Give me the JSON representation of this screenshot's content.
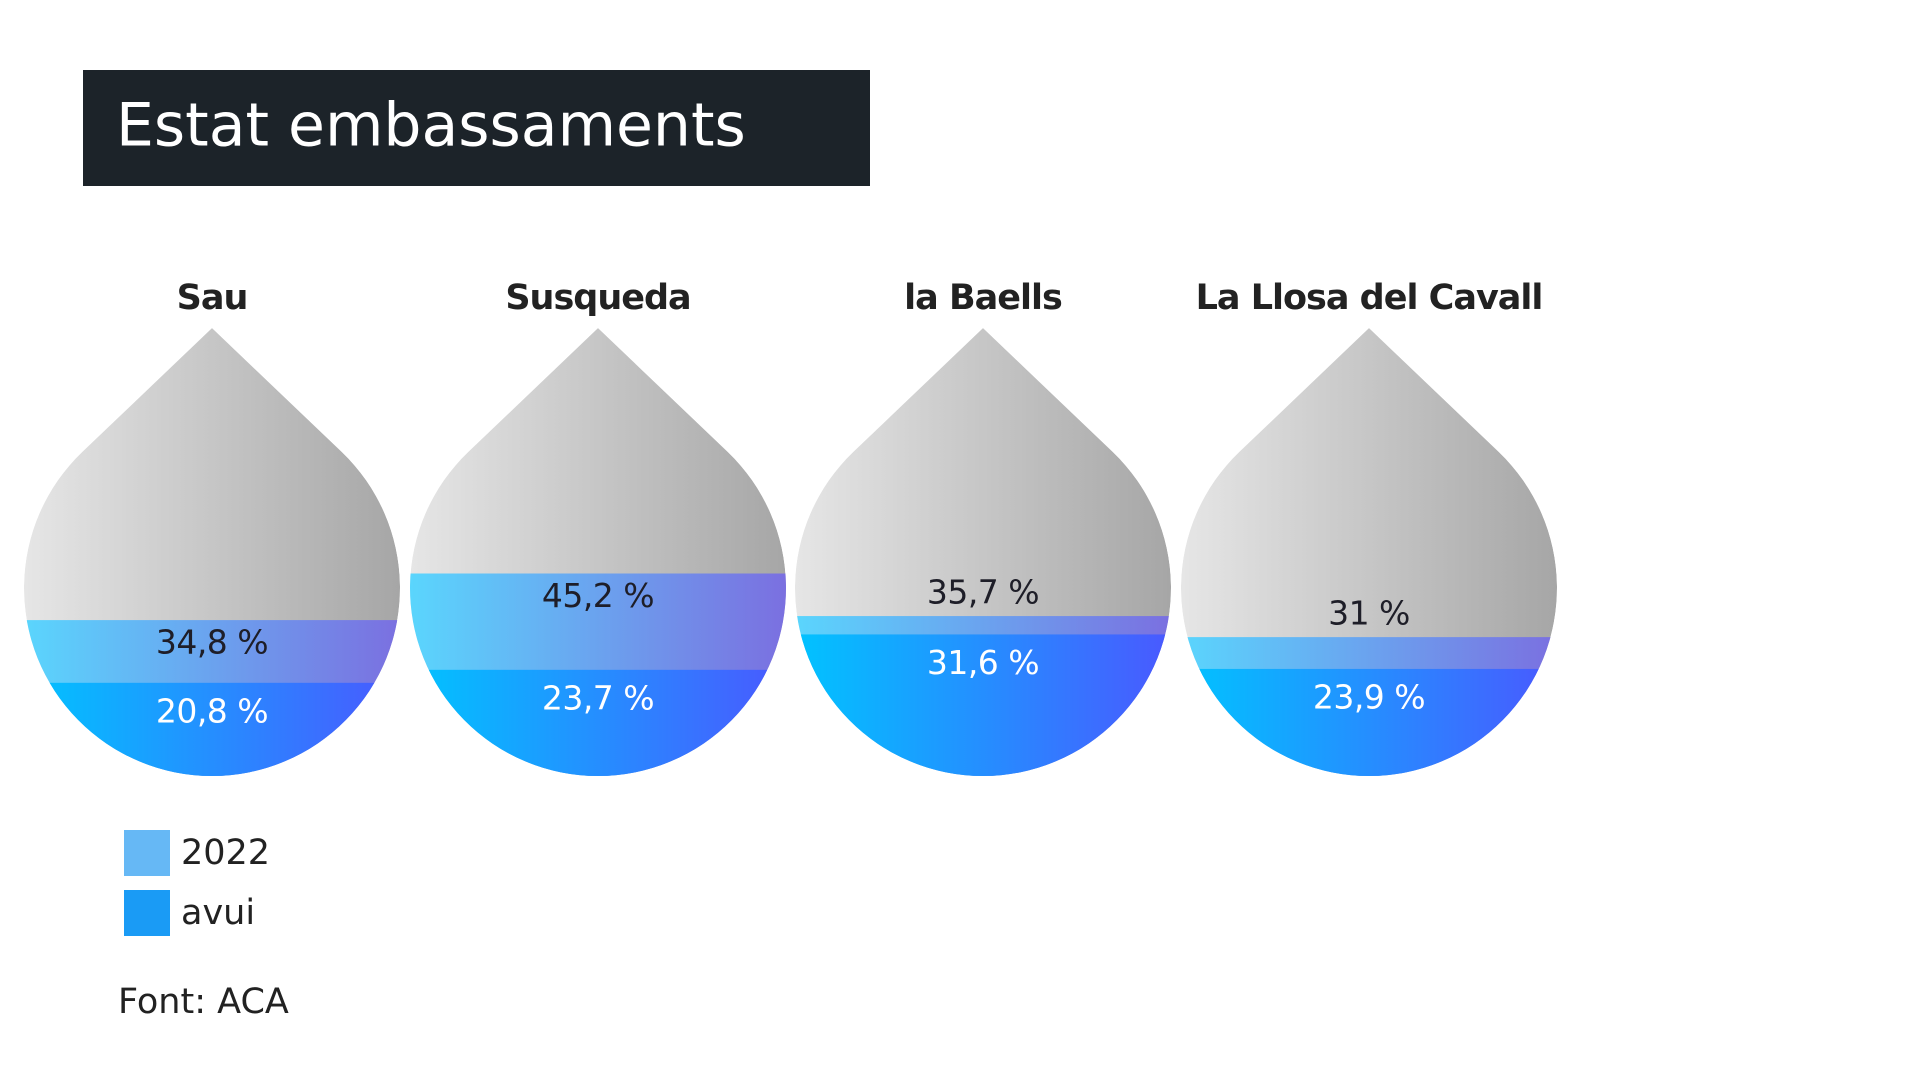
{
  "chart_data": {
    "type": "drop",
    "title": "Estat embassaments",
    "categories": [
      "Sau",
      "Susqueda",
      "la Baells",
      "La Llosa del Cavall"
    ],
    "ylim": [
      0,
      100
    ],
    "series": [
      {
        "name": "2022",
        "color": "#66b8f5",
        "values": [
          34.8,
          45.2,
          35.7,
          31
        ],
        "value_labels": [
          "34,8 %",
          "45,2 %",
          "35,7 %",
          "31 %"
        ]
      },
      {
        "name": "avui",
        "color": "#1a9bf5",
        "values": [
          20.8,
          23.7,
          31.6,
          23.9
        ],
        "value_labels": [
          "20,8 %",
          "23,7 %",
          "31,6 %",
          "23,9 %"
        ]
      }
    ],
    "source": "Font: ACA"
  }
}
